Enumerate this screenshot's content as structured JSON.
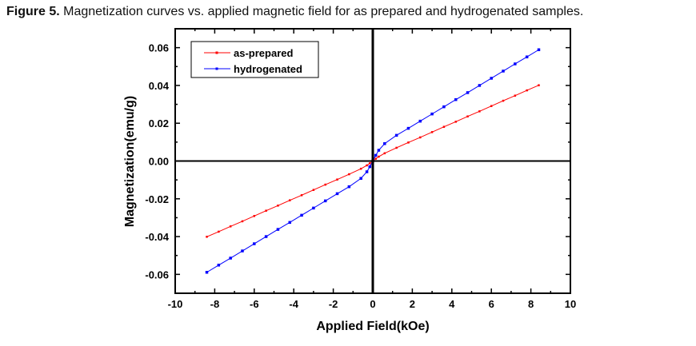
{
  "caption": {
    "label": "Figure 5.",
    "text": " Magnetization curves vs. applied magnetic field for as prepared and hydrogenated samples."
  },
  "chart_data": {
    "type": "line",
    "title": "",
    "xlabel": "Applied Field(kOe)",
    "ylabel": "Magnetization(emu/g)",
    "xlim": [
      -10,
      10
    ],
    "ylim": [
      -0.07,
      0.07
    ],
    "xticks": [
      -10,
      -8,
      -6,
      -4,
      -2,
      0,
      2,
      4,
      6,
      8,
      10
    ],
    "yticks": [
      -0.06,
      -0.04,
      -0.02,
      0.0,
      0.02,
      0.04,
      0.06
    ],
    "xtick_labels": [
      "-10",
      "-8",
      "-6",
      "-4",
      "-2",
      "0",
      "2",
      "4",
      "6",
      "8",
      "10"
    ],
    "ytick_labels": [
      "-0.06",
      "-0.04",
      "-0.02",
      "0.00",
      "0.02",
      "0.04",
      "0.06"
    ],
    "grid": false,
    "legend_position": "top-left",
    "x": [
      -8.4,
      -7.8,
      -7.2,
      -6.6,
      -6.0,
      -5.4,
      -4.8,
      -4.2,
      -3.6,
      -3.0,
      -2.4,
      -1.8,
      -1.2,
      -0.6,
      -0.3,
      -0.15,
      0,
      0.15,
      0.3,
      0.6,
      1.2,
      1.8,
      2.4,
      3.0,
      3.6,
      4.2,
      4.8,
      5.4,
      6.0,
      6.6,
      7.2,
      7.8,
      8.4
    ],
    "series": [
      {
        "name": "as-prepared",
        "color": "#ff0000",
        "values": [
          -0.0401,
          -0.0374,
          -0.0346,
          -0.0319,
          -0.0291,
          -0.0263,
          -0.0236,
          -0.0208,
          -0.0181,
          -0.0153,
          -0.0125,
          -0.0098,
          -0.007,
          -0.0041,
          -0.0023,
          -0.0012,
          0,
          0.0012,
          0.0023,
          0.0041,
          0.007,
          0.0098,
          0.0125,
          0.0153,
          0.0181,
          0.0208,
          0.0236,
          0.0263,
          0.0291,
          0.0319,
          0.0346,
          0.0374,
          0.0401
        ]
      },
      {
        "name": "hydrogenated",
        "color": "#0000ff",
        "values": [
          -0.0589,
          -0.0551,
          -0.0514,
          -0.0476,
          -0.0438,
          -0.04,
          -0.0362,
          -0.0325,
          -0.0287,
          -0.0249,
          -0.0211,
          -0.0173,
          -0.0136,
          -0.0092,
          -0.0057,
          -0.003,
          0,
          0.003,
          0.0057,
          0.0092,
          0.0136,
          0.0173,
          0.0211,
          0.0249,
          0.0287,
          0.0325,
          0.0362,
          0.04,
          0.0438,
          0.0476,
          0.0514,
          0.0551,
          0.0589
        ]
      }
    ]
  }
}
